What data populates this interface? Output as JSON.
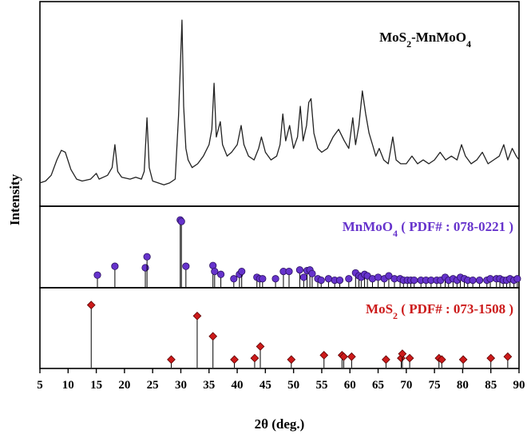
{
  "chart_data": {
    "type": "line",
    "xlabel": "2θ (deg.)",
    "ylabel": "Intensity",
    "xlim": [
      5,
      90
    ],
    "xticks": [
      5,
      10,
      15,
      20,
      25,
      30,
      35,
      40,
      45,
      50,
      55,
      60,
      65,
      70,
      75,
      80,
      85,
      90
    ],
    "grid": false,
    "panels": [
      {
        "name": "MoS2-MnMoO4",
        "label_main": "MoS",
        "label_sub": "2",
        "label_rest": "-MnMoO",
        "label_sub2": "4",
        "label_rest2": "",
        "type": "line",
        "color": "#222222",
        "ylim": [
          0,
          100
        ],
        "points": [
          [
            5,
            10
          ],
          [
            6,
            11
          ],
          [
            7,
            14
          ],
          [
            8,
            22
          ],
          [
            8.8,
            27
          ],
          [
            9.5,
            26
          ],
          [
            10.5,
            17
          ],
          [
            11.5,
            12
          ],
          [
            12.5,
            11
          ],
          [
            14,
            12
          ],
          [
            15,
            15
          ],
          [
            15.5,
            12
          ],
          [
            17,
            14
          ],
          [
            17.8,
            18
          ],
          [
            18.3,
            30
          ],
          [
            18.8,
            16
          ],
          [
            19.5,
            13
          ],
          [
            21,
            12
          ],
          [
            22,
            13
          ],
          [
            23,
            12
          ],
          [
            23.5,
            16
          ],
          [
            24,
            44
          ],
          [
            24.4,
            18
          ],
          [
            25,
            11
          ],
          [
            26,
            10
          ],
          [
            27,
            9
          ],
          [
            28,
            10
          ],
          [
            29,
            12
          ],
          [
            29.6,
            45
          ],
          [
            29.9,
            70
          ],
          [
            30.2,
            95
          ],
          [
            30.5,
            50
          ],
          [
            30.9,
            28
          ],
          [
            31.3,
            22
          ],
          [
            32,
            18
          ],
          [
            33,
            20
          ],
          [
            34,
            24
          ],
          [
            35,
            30
          ],
          [
            35.5,
            38
          ],
          [
            35.9,
            62
          ],
          [
            36.3,
            34
          ],
          [
            37,
            42
          ],
          [
            37.4,
            30
          ],
          [
            38.2,
            24
          ],
          [
            39,
            26
          ],
          [
            40,
            30
          ],
          [
            40.7,
            40
          ],
          [
            41.2,
            30
          ],
          [
            42,
            24
          ],
          [
            43,
            22
          ],
          [
            43.8,
            28
          ],
          [
            44.3,
            34
          ],
          [
            45,
            26
          ],
          [
            46,
            22
          ],
          [
            47,
            24
          ],
          [
            47.6,
            30
          ],
          [
            48.1,
            46
          ],
          [
            48.6,
            32
          ],
          [
            49.3,
            40
          ],
          [
            50,
            28
          ],
          [
            50.7,
            34
          ],
          [
            51.2,
            50
          ],
          [
            51.7,
            32
          ],
          [
            52.3,
            40
          ],
          [
            52.7,
            52
          ],
          [
            53.1,
            54
          ],
          [
            53.6,
            36
          ],
          [
            54.3,
            28
          ],
          [
            55,
            26
          ],
          [
            56,
            28
          ],
          [
            57,
            34
          ],
          [
            58,
            38
          ],
          [
            59,
            32
          ],
          [
            59.8,
            28
          ],
          [
            60.5,
            44
          ],
          [
            61,
            30
          ],
          [
            61.6,
            40
          ],
          [
            62.2,
            58
          ],
          [
            62.8,
            46
          ],
          [
            63.4,
            36
          ],
          [
            64,
            30
          ],
          [
            64.6,
            24
          ],
          [
            65.2,
            28
          ],
          [
            66,
            22
          ],
          [
            66.8,
            20
          ],
          [
            67.6,
            34
          ],
          [
            68.2,
            22
          ],
          [
            69,
            20
          ],
          [
            70,
            20
          ],
          [
            71,
            24
          ],
          [
            72,
            20
          ],
          [
            73,
            22
          ],
          [
            74,
            20
          ],
          [
            75,
            22
          ],
          [
            76,
            26
          ],
          [
            77,
            22
          ],
          [
            78,
            24
          ],
          [
            79,
            22
          ],
          [
            79.8,
            30
          ],
          [
            80.5,
            24
          ],
          [
            81.5,
            20
          ],
          [
            82.5,
            22
          ],
          [
            83.5,
            26
          ],
          [
            84.5,
            20
          ],
          [
            85.5,
            22
          ],
          [
            86.5,
            24
          ],
          [
            87.3,
            30
          ],
          [
            88,
            22
          ],
          [
            88.8,
            28
          ],
          [
            89.5,
            24
          ],
          [
            90,
            22
          ]
        ]
      },
      {
        "name": "MnMoO4 ( PDF# : 078-0221 )",
        "label_main": "MnMoO",
        "label_sub": "4",
        "label_rest": " ( PDF# : 078-0221 )",
        "label_sub2": "",
        "label_rest2": "",
        "type": "stick",
        "marker": "circle",
        "color": "#6633cc",
        "ylim": [
          0,
          100
        ],
        "sticks": [
          [
            15.2,
            15
          ],
          [
            18.3,
            27
          ],
          [
            23.7,
            25
          ],
          [
            24.0,
            40
          ],
          [
            29.9,
            90
          ],
          [
            30.1,
            88
          ],
          [
            30.9,
            27
          ],
          [
            35.7,
            28
          ],
          [
            36.0,
            20
          ],
          [
            37.1,
            16
          ],
          [
            39.4,
            10
          ],
          [
            40.4,
            16
          ],
          [
            40.8,
            20
          ],
          [
            43.5,
            12
          ],
          [
            44.0,
            10
          ],
          [
            44.5,
            10
          ],
          [
            46.8,
            10
          ],
          [
            48.2,
            20
          ],
          [
            49.2,
            20
          ],
          [
            51.1,
            22
          ],
          [
            51.8,
            12
          ],
          [
            52.4,
            21
          ],
          [
            52.9,
            22
          ],
          [
            53.3,
            17
          ],
          [
            54.3,
            10
          ],
          [
            54.9,
            8
          ],
          [
            56.2,
            10
          ],
          [
            57.3,
            8
          ],
          [
            58.2,
            8
          ],
          [
            59.8,
            10
          ],
          [
            61.0,
            18
          ],
          [
            61.6,
            14
          ],
          [
            62.0,
            12
          ],
          [
            62.6,
            16
          ],
          [
            63.1,
            14
          ],
          [
            64.0,
            10
          ],
          [
            65.0,
            12
          ],
          [
            66.1,
            10
          ],
          [
            66.9,
            14
          ],
          [
            67.9,
            10
          ],
          [
            68.9,
            10
          ],
          [
            69.5,
            8
          ],
          [
            70.2,
            8
          ],
          [
            70.8,
            8
          ],
          [
            71.4,
            8
          ],
          [
            72.6,
            8
          ],
          [
            73.5,
            8
          ],
          [
            74.4,
            8
          ],
          [
            75.4,
            8
          ],
          [
            76.1,
            8
          ],
          [
            76.9,
            12
          ],
          [
            77.5,
            8
          ],
          [
            78.3,
            10
          ],
          [
            79.0,
            8
          ],
          [
            79.6,
            12
          ],
          [
            80.3,
            10
          ],
          [
            80.9,
            8
          ],
          [
            81.8,
            8
          ],
          [
            83.0,
            8
          ],
          [
            84.3,
            8
          ],
          [
            84.9,
            10
          ],
          [
            86.0,
            10
          ],
          [
            86.6,
            10
          ],
          [
            87.2,
            8
          ],
          [
            87.8,
            8
          ],
          [
            88.4,
            10
          ],
          [
            89.1,
            8
          ],
          [
            89.7,
            10
          ]
        ]
      },
      {
        "name": "MoS2 ( PDF# : 073-1508 )",
        "label_main": "MoS",
        "label_sub": "2",
        "label_rest": " ( PDF# : 073-1508 )",
        "label_sub2": "",
        "label_rest2": "",
        "type": "stick",
        "marker": "diamond",
        "color": "#cc1a1a",
        "ylim": [
          0,
          100
        ],
        "sticks": [
          [
            14.1,
            85
          ],
          [
            28.3,
            10
          ],
          [
            32.9,
            70
          ],
          [
            35.7,
            42
          ],
          [
            39.5,
            10
          ],
          [
            43.1,
            12
          ],
          [
            44.1,
            28
          ],
          [
            49.6,
            10
          ],
          [
            55.4,
            16
          ],
          [
            58.6,
            16
          ],
          [
            58.9,
            14
          ],
          [
            60.3,
            14
          ],
          [
            66.4,
            10
          ],
          [
            69.1,
            12
          ],
          [
            69.3,
            18
          ],
          [
            70.6,
            12
          ],
          [
            75.8,
            12
          ],
          [
            76.3,
            10
          ],
          [
            80.1,
            10
          ],
          [
            85.0,
            12
          ],
          [
            88.0,
            14
          ]
        ]
      }
    ]
  }
}
